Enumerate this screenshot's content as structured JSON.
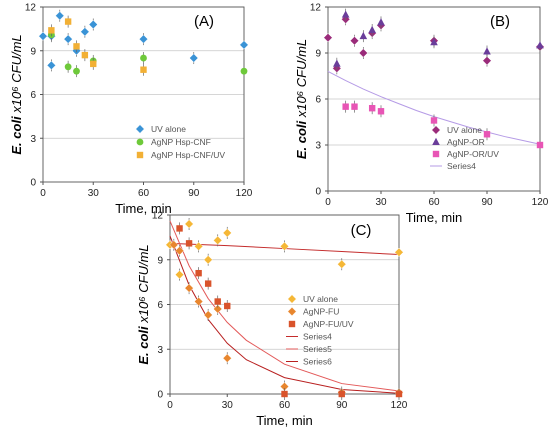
{
  "figure": {
    "panels": [
      {
        "id": "A",
        "label": "(A)"
      },
      {
        "id": "B",
        "label": "(B)"
      },
      {
        "id": "C",
        "label": "(C)"
      }
    ]
  },
  "chart_data": [
    {
      "panel": "(A)",
      "type": "scatter",
      "xlabel": "Time, min",
      "ylabel": "E. coli x10⁶ CFU/mL",
      "xlim": [
        0,
        120
      ],
      "ylim": [
        0,
        12
      ],
      "xticks": [
        0,
        30,
        60,
        90,
        120
      ],
      "yticks": [
        0,
        3,
        6,
        9,
        12
      ],
      "grid": "horizontal",
      "legend_position": "bottom-right",
      "series": [
        {
          "name": "UV alone",
          "color": "#3a93d6",
          "marker": "diamond",
          "x": [
            0,
            5,
            5,
            10,
            15,
            20,
            25,
            30,
            60,
            90,
            120
          ],
          "y": [
            10.0,
            8.0,
            10.0,
            11.4,
            9.8,
            9.0,
            10.3,
            10.8,
            9.8,
            8.5,
            9.4
          ]
        },
        {
          "name": "AgNP Hsp-CNF",
          "color": "#6ec93a",
          "marker": "circle",
          "x": [
            5,
            15,
            20,
            30,
            60,
            120
          ],
          "y": [
            10.1,
            7.9,
            7.6,
            8.3,
            8.5,
            7.6
          ]
        },
        {
          "name": "AgNP Hsp-CNF/UV",
          "color": "#f2b035",
          "marker": "square",
          "x": [
            5,
            15,
            20,
            25,
            30,
            60
          ],
          "y": [
            10.4,
            11.0,
            9.3,
            8.7,
            8.1,
            7.7
          ]
        }
      ]
    },
    {
      "panel": "(B)",
      "type": "scatter",
      "xlabel": "Time, min",
      "ylabel": "E. coli x10⁶ CFU/mL",
      "xlim": [
        0,
        120
      ],
      "ylim": [
        0,
        12
      ],
      "xticks": [
        0,
        30,
        60,
        90,
        120
      ],
      "yticks": [
        0,
        3,
        6,
        9,
        12
      ],
      "grid": "horizontal",
      "legend_position": "bottom-right",
      "series": [
        {
          "name": "UV alone",
          "color": "#9a2b7a",
          "marker": "diamond",
          "x": [
            0,
            5,
            10,
            15,
            20,
            25,
            30,
            60,
            90,
            120
          ],
          "y": [
            10.0,
            8.0,
            11.2,
            9.8,
            9.0,
            10.3,
            10.8,
            9.8,
            8.5,
            9.4
          ]
        },
        {
          "name": "AgNP-OR",
          "color": "#6a3d9a",
          "marker": "triangle",
          "x": [
            5,
            10,
            20,
            25,
            30,
            60,
            90,
            120
          ],
          "y": [
            8.3,
            11.5,
            10.1,
            10.5,
            11.0,
            9.7,
            9.1,
            9.5
          ]
        },
        {
          "name": "AgNP-OR/UV",
          "color": "#e855b5",
          "marker": "square",
          "x": [
            10,
            15,
            25,
            30,
            60,
            90,
            120
          ],
          "y": [
            5.5,
            5.5,
            5.4,
            5.2,
            4.6,
            3.7,
            3.0
          ]
        },
        {
          "name": "Series4",
          "color": "#b59be6",
          "marker": "line",
          "x": [
            0,
            10,
            20,
            30,
            40,
            50,
            60,
            70,
            80,
            90,
            100,
            110,
            120
          ],
          "y": [
            7.8,
            7.2,
            6.65,
            6.15,
            5.7,
            5.25,
            4.85,
            4.5,
            4.15,
            3.85,
            3.55,
            3.3,
            3.05
          ]
        }
      ]
    },
    {
      "panel": "(C)",
      "type": "scatter",
      "xlabel": "Time, min",
      "ylabel": "E. coli x10⁶ CFU/mL",
      "xlim": [
        0,
        120
      ],
      "ylim": [
        0,
        12
      ],
      "xticks": [
        0,
        30,
        60,
        90,
        120
      ],
      "yticks": [
        0,
        3,
        6,
        9,
        12
      ],
      "grid": "horizontal",
      "legend_position": "center-right",
      "series": [
        {
          "name": "UV alone",
          "color": "#f5b736",
          "marker": "diamond",
          "x": [
            0,
            5,
            10,
            15,
            20,
            25,
            30,
            60,
            90,
            120
          ],
          "y": [
            10.0,
            8.0,
            11.4,
            9.9,
            9.0,
            10.3,
            10.8,
            9.9,
            8.7,
            9.5
          ]
        },
        {
          "name": "AgNP-FU",
          "color": "#e8862e",
          "marker": "diamond",
          "x": [
            2,
            5,
            10,
            15,
            20,
            25,
            30,
            60,
            90,
            120
          ],
          "y": [
            10.0,
            9.6,
            7.1,
            6.2,
            5.3,
            5.7,
            2.4,
            0.5,
            0.1,
            0.1
          ]
        },
        {
          "name": "AgNP-FU/UV",
          "color": "#d9532b",
          "marker": "square",
          "x": [
            5,
            10,
            15,
            20,
            25,
            30,
            60,
            90,
            120
          ],
          "y": [
            11.1,
            10.1,
            8.1,
            7.4,
            6.2,
            5.9,
            0.0,
            0.0,
            0.0
          ]
        },
        {
          "name": "Series4",
          "color": "#c42c2c",
          "marker": "line",
          "x": [
            0,
            30,
            60,
            90,
            120
          ],
          "y": [
            10.1,
            9.95,
            9.75,
            9.55,
            9.35
          ]
        },
        {
          "name": "Series5",
          "color": "#e35a5a",
          "marker": "line",
          "x": [
            0,
            10,
            20,
            30,
            40,
            60,
            90,
            120
          ],
          "y": [
            11.6,
            8.6,
            6.4,
            4.8,
            3.6,
            2.0,
            0.7,
            0.2
          ]
        },
        {
          "name": "Series6",
          "color": "#b81f1f",
          "marker": "line",
          "x": [
            0,
            10,
            20,
            30,
            40,
            60,
            90,
            120
          ],
          "y": [
            10.6,
            7.3,
            5.0,
            3.4,
            2.3,
            1.1,
            0.3,
            0.05
          ]
        }
      ]
    }
  ]
}
